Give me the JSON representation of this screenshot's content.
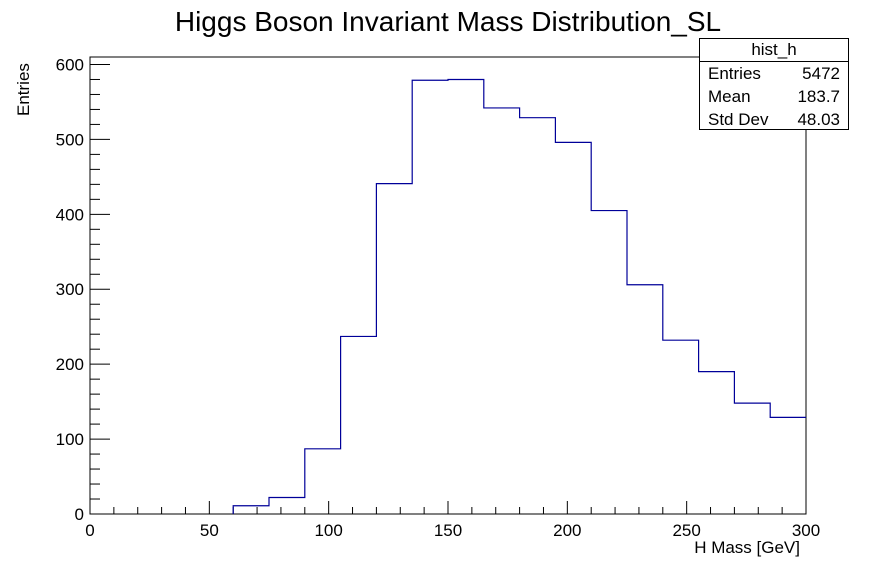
{
  "chart_data": {
    "type": "histogram",
    "title": "Higgs Boson Invariant Mass Distribution_SL",
    "xlabel": "H Mass [GeV]",
    "ylabel": "Entries",
    "xlim": [
      0,
      300
    ],
    "ylim": [
      0,
      610
    ],
    "x_ticks": [
      0,
      50,
      100,
      150,
      200,
      250,
      300
    ],
    "y_ticks": [
      0,
      100,
      200,
      300,
      400,
      500,
      600
    ],
    "bin_edges": [
      60,
      75,
      90,
      105,
      120,
      135,
      150,
      165,
      180,
      195,
      210,
      225,
      240,
      255,
      270,
      285,
      300
    ],
    "values": [
      11,
      22,
      87,
      237,
      441,
      579,
      580,
      542,
      529,
      496,
      405,
      306,
      232,
      190,
      148,
      129
    ],
    "line_color": "#000099",
    "stats": {
      "name": "hist_h",
      "rows": [
        {
          "label": "Entries",
          "value": "5472"
        },
        {
          "label": "Mean",
          "value": "183.7"
        },
        {
          "label": "Std Dev",
          "value": "48.03"
        }
      ]
    }
  }
}
